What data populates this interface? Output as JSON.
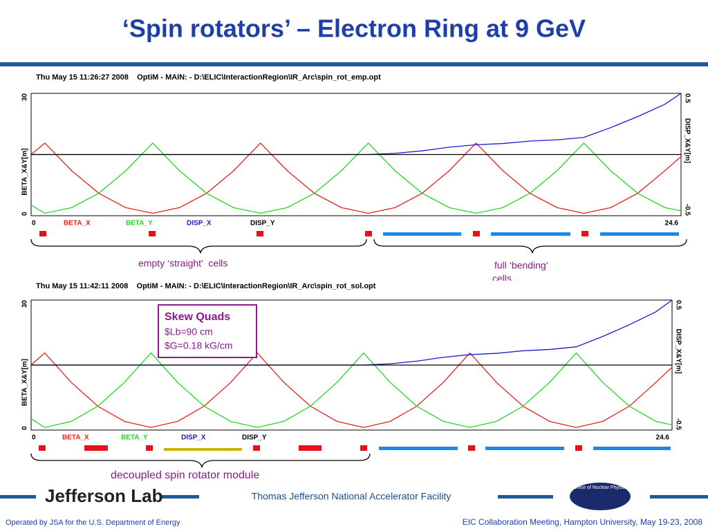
{
  "title": "‘Spin rotators’ – Electron Ring at 9 GeV",
  "chart_data": [
    {
      "type": "line",
      "header": "Thu May 15 11:26:27 2008    OptiM - MAIN: - D:\\ELIC\\InteractionRegion\\IR_Arc\\spin_rot_emp.opt",
      "ylabel": "BETA_X&Y[m]",
      "y2label": "DISP_X&Y[m]",
      "xlim": [
        0,
        24.6
      ],
      "xticks": [
        0,
        24.6
      ],
      "ylim": [
        0,
        30
      ],
      "yticks": [
        0,
        30
      ],
      "y2lim": [
        -0.5,
        0.5
      ],
      "y2ticks": [
        -0.5,
        0.5
      ],
      "x": [
        0,
        0.52,
        1.54,
        2.56,
        3.58,
        4.6,
        5.62,
        6.64,
        7.66,
        8.68,
        9.7,
        10.72,
        11.74,
        12.76,
        13.78,
        14.8,
        15.82,
        16.84,
        17.86,
        18.88,
        19.9,
        20.92,
        21.94,
        22.96,
        23.98,
        24.6
      ],
      "series": [
        {
          "name": "BETA_X",
          "color": "#e8201c",
          "values": [
            15,
            17.8,
            11,
            5.5,
            2,
            0.6,
            2,
            5.5,
            11,
            17.8,
            11,
            5.5,
            2,
            0.6,
            2,
            5.5,
            11,
            17.8,
            11,
            5.5,
            2,
            0.6,
            2,
            5.5,
            11,
            14.5
          ]
        },
        {
          "name": "BETA_Y",
          "color": "#22d822",
          "values": [
            2.6,
            0.6,
            2,
            5.5,
            11,
            17.8,
            11,
            5.5,
            2,
            0.6,
            2,
            5.5,
            11,
            17.8,
            11,
            5.5,
            2,
            0.6,
            2,
            5.5,
            11,
            17.8,
            11,
            5.5,
            2,
            1.2
          ]
        },
        {
          "name": "DISP_X",
          "color": "#1a1ad0",
          "axis": "y2",
          "values": [
            0,
            0,
            0,
            0,
            0,
            0,
            0,
            0,
            0,
            0,
            0,
            0,
            0,
            0,
            0.01,
            0.03,
            0.06,
            0.08,
            0.09,
            0.11,
            0.12,
            0.14,
            0.22,
            0.31,
            0.41,
            0.5
          ]
        },
        {
          "name": "DISP_Y",
          "color": "#000000",
          "axis": "y2",
          "values": [
            0,
            0,
            0,
            0,
            0,
            0,
            0,
            0,
            0,
            0,
            0,
            0,
            0,
            0,
            0,
            0,
            0,
            0,
            0,
            0,
            0,
            0,
            0,
            0,
            0,
            0
          ]
        }
      ]
    },
    {
      "type": "line",
      "header": "Thu May 15 11:42:11 2008    OptiM - MAIN: - D:\\ELIC\\InteractionRegion\\IR_Arc\\spin_rot_sol.opt",
      "ylabel": "BETA_X&Y[m]",
      "y2label": "DISP_X&Y[m]",
      "xlim": [
        0,
        24.6
      ],
      "xticks": [
        0,
        24.6
      ],
      "ylim": [
        0,
        30
      ],
      "yticks": [
        0,
        30
      ],
      "y2lim": [
        -0.5,
        0.5
      ],
      "y2ticks": [
        -0.5,
        0.5
      ],
      "x": [
        0,
        0.52,
        1.54,
        2.56,
        3.58,
        4.6,
        5.62,
        6.64,
        7.66,
        8.68,
        9.7,
        10.72,
        11.74,
        12.76,
        13.78,
        14.8,
        15.82,
        16.84,
        17.86,
        18.88,
        19.9,
        20.92,
        21.94,
        22.96,
        23.98,
        24.6
      ],
      "series": [
        {
          "name": "BETA_X",
          "color": "#e8201c",
          "values": [
            15,
            17.8,
            11,
            5.5,
            2,
            0.6,
            2,
            5.5,
            11,
            17.8,
            11,
            5.5,
            2,
            0.6,
            2,
            5.5,
            11,
            17.8,
            11,
            5.5,
            2,
            0.6,
            2,
            5.5,
            11,
            14.5
          ]
        },
        {
          "name": "BETA_Y",
          "color": "#22d822",
          "values": [
            2.6,
            0.6,
            2,
            5.5,
            11,
            17.8,
            11,
            5.5,
            2,
            0.6,
            2,
            5.5,
            11,
            17.8,
            11,
            5.5,
            2,
            0.6,
            2,
            5.5,
            11,
            17.8,
            11,
            5.5,
            2,
            1.2
          ]
        },
        {
          "name": "DISP_X",
          "color": "#1a1ad0",
          "axis": "y2",
          "values": [
            0,
            0,
            0,
            0,
            0,
            0,
            0,
            0,
            0,
            0,
            0,
            0,
            0,
            0,
            0.01,
            0.03,
            0.06,
            0.08,
            0.09,
            0.11,
            0.12,
            0.14,
            0.22,
            0.31,
            0.41,
            0.5
          ]
        },
        {
          "name": "DISP_Y",
          "color": "#000000",
          "axis": "y2",
          "values": [
            0,
            0,
            0,
            0,
            0,
            0,
            0,
            0,
            0,
            0,
            0,
            0,
            0,
            0,
            0,
            0,
            0,
            0,
            0,
            0,
            0,
            0,
            0,
            0,
            0,
            0
          ]
        }
      ]
    }
  ],
  "annotations": {
    "straight_cells": "empty ‘straight’  cells",
    "bending_cells": [
      "full ‘bending’",
      "cells"
    ],
    "skew_quads": {
      "title": "Skew Quads",
      "lines": [
        "$Lb=90 cm",
        "$G=0.18 kG/cm"
      ]
    },
    "module": "decoupled spin rotator module"
  },
  "footer": {
    "logo": "Jefferson Lab",
    "facility": "Thomas Jefferson National Accelerator Facility",
    "office": "Office of Nuclear Physics",
    "operated": "Operated by JSA for the U.S. Department of Energy",
    "meeting": "EIC Collaboration Meeting, Hampton University, May 19-23, 2008"
  }
}
